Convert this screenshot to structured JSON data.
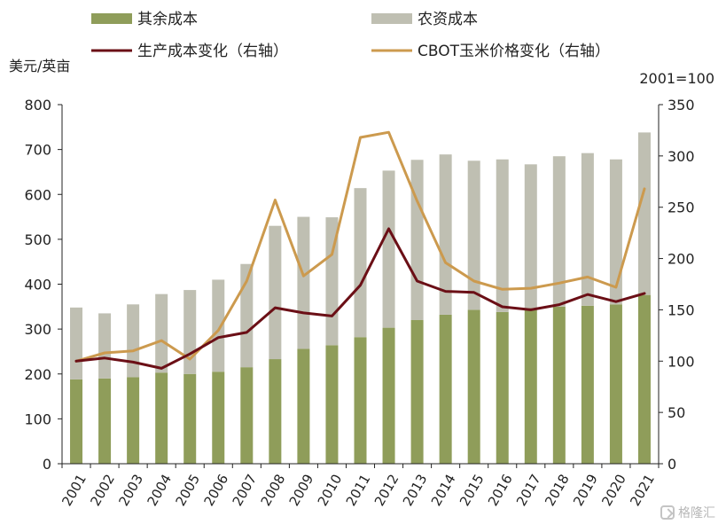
{
  "chart_data": {
    "type": "bar+line",
    "title": "",
    "y_left": {
      "label": "美元/英亩",
      "range": [
        0,
        800
      ],
      "ticks": [
        0,
        100,
        200,
        300,
        400,
        500,
        600,
        700,
        800
      ]
    },
    "y_right": {
      "label": "2001=100",
      "range": [
        0,
        350
      ],
      "ticks": [
        0,
        50,
        100,
        150,
        200,
        250,
        300,
        350
      ]
    },
    "categories": [
      "2001",
      "2002",
      "2003",
      "2004",
      "2005",
      "2006",
      "2007",
      "2008",
      "2009",
      "2010",
      "2011",
      "2012",
      "2013",
      "2014",
      "2015",
      "2016",
      "2017",
      "2018",
      "2019",
      "2020",
      "2021"
    ],
    "stacked_bars": [
      {
        "name": "其余成本",
        "color": "#8f9d5a",
        "axis": "left",
        "values": [
          188,
          190,
          193,
          203,
          200,
          205,
          215,
          233,
          256,
          264,
          282,
          303,
          320,
          332,
          343,
          338,
          347,
          350,
          352,
          355,
          376
        ]
      },
      {
        "name": "农资成本",
        "color": "#bfbfb2",
        "axis": "left",
        "values": [
          160,
          145,
          162,
          175,
          187,
          205,
          230,
          297,
          294,
          285,
          332,
          350,
          357,
          357,
          332,
          340,
          320,
          335,
          340,
          323,
          362
        ]
      }
    ],
    "lines": [
      {
        "name": "生产成本变化（右轴）",
        "color": "#6b0f16",
        "axis": "right",
        "values": [
          100,
          103,
          99,
          93,
          107,
          123,
          128,
          152,
          147,
          144,
          174,
          229,
          178,
          168,
          167,
          153,
          150,
          155,
          165,
          158,
          166
        ]
      },
      {
        "name": "CBOT玉米价格变化（右轴）",
        "color": "#cc9a4e",
        "axis": "right",
        "values": [
          100,
          108,
          110,
          120,
          102,
          130,
          178,
          257,
          183,
          204,
          318,
          323,
          256,
          196,
          178,
          170,
          171,
          176,
          182,
          172,
          268
        ]
      }
    ],
    "legend_position": "top",
    "grid": false
  },
  "watermark": {
    "text": "格隆汇"
  }
}
